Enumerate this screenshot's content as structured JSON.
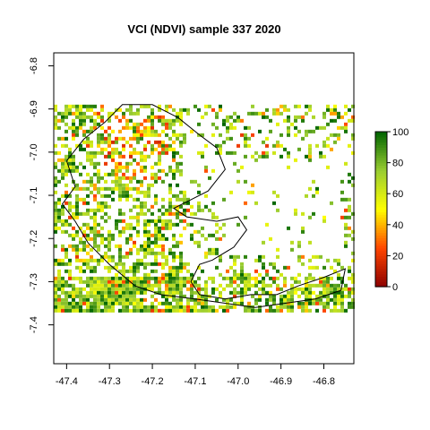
{
  "chart_data": {
    "type": "heatmap",
    "title": "VCI (NDVI) sample 337 2020",
    "xlabel": "",
    "ylabel": "",
    "xlim": [
      -47.43,
      -46.73
    ],
    "ylim": [
      -7.49,
      -6.77
    ],
    "x_ticks": [
      "-47.4",
      "-47.3",
      "-47.2",
      "-47.1",
      "-47.0",
      "-46.9",
      "-46.8"
    ],
    "y_ticks": [
      "-6.8",
      "-6.9",
      "-7.0",
      "-7.1",
      "-7.2",
      "-7.3",
      "-7.4"
    ],
    "raster_extent": {
      "lon": [
        -47.43,
        -46.73
      ],
      "lat": [
        -7.37,
        -6.89
      ]
    },
    "colorbar": {
      "min": 0,
      "max": 100,
      "ticks": [
        "0",
        "20",
        "40",
        "60",
        "80",
        "100"
      ],
      "colors": [
        "#8b0000",
        "#ff4500",
        "#ffff00",
        "#9acd32",
        "#006400"
      ]
    },
    "boundary_polygon": [
      [
        -47.4,
        -7.02
      ],
      [
        -47.36,
        -6.97
      ],
      [
        -47.31,
        -6.93
      ],
      [
        -47.27,
        -6.89
      ],
      [
        -47.2,
        -6.89
      ],
      [
        -47.14,
        -6.92
      ],
      [
        -47.09,
        -6.96
      ],
      [
        -47.05,
        -6.99
      ],
      [
        -47.03,
        -7.04
      ],
      [
        -47.07,
        -7.09
      ],
      [
        -47.11,
        -7.11
      ],
      [
        -47.15,
        -7.13
      ],
      [
        -47.12,
        -7.15
      ],
      [
        -47.05,
        -7.16
      ],
      [
        -47.0,
        -7.15
      ],
      [
        -46.98,
        -7.18
      ],
      [
        -47.01,
        -7.22
      ],
      [
        -47.06,
        -7.25
      ],
      [
        -47.09,
        -7.26
      ],
      [
        -47.11,
        -7.3
      ],
      [
        -47.09,
        -7.33
      ],
      [
        -47.03,
        -7.34
      ],
      [
        -46.97,
        -7.33
      ],
      [
        -46.91,
        -7.33
      ],
      [
        -46.86,
        -7.31
      ],
      [
        -46.8,
        -7.29
      ],
      [
        -46.75,
        -7.27
      ],
      [
        -46.76,
        -7.32
      ],
      [
        -46.82,
        -7.34
      ],
      [
        -46.89,
        -7.35
      ],
      [
        -46.96,
        -7.36
      ],
      [
        -47.03,
        -7.35
      ],
      [
        -47.1,
        -7.34
      ],
      [
        -47.18,
        -7.33
      ],
      [
        -47.24,
        -7.31
      ],
      [
        -47.3,
        -7.26
      ],
      [
        -47.35,
        -7.21
      ],
      [
        -47.38,
        -7.16
      ],
      [
        -47.41,
        -7.12
      ],
      [
        -47.38,
        -7.08
      ],
      [
        -47.4,
        -7.02
      ]
    ]
  }
}
